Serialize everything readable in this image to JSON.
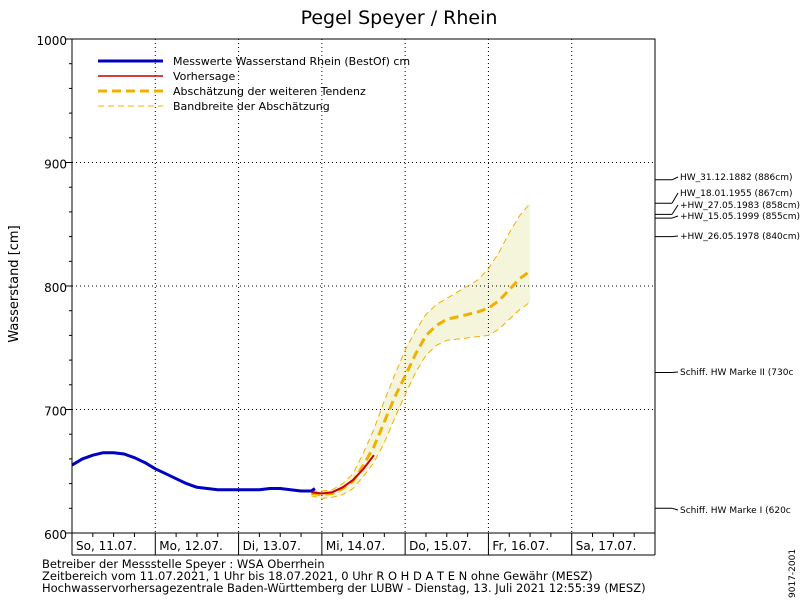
{
  "chart_data": {
    "type": "line",
    "title": "Pegel Speyer / Rhein",
    "ylabel": "Wasserstand [cm]",
    "ylim": [
      600,
      1000
    ],
    "yticks": [
      600,
      700,
      800,
      900,
      1000
    ],
    "xlim": [
      "2021-07-11T00:00",
      "2021-07-18T00:00"
    ],
    "day_labels": [
      "So, 11.07.",
      "Mo, 12.07.",
      "Di, 13.07.",
      "Mi, 14.07.",
      "Do, 15.07.",
      "Fr, 16.07.",
      "Sa, 17.07."
    ],
    "grid": true,
    "legend_position": "top-left",
    "series": [
      {
        "name": "Messwerte Wasserstand Rhein (BestOf)   cm",
        "color": "#0000c0",
        "style": "solid-thick",
        "points": [
          [
            "2021-07-11T00:00",
            655
          ],
          [
            "2021-07-11T03:00",
            660
          ],
          [
            "2021-07-11T06:00",
            663
          ],
          [
            "2021-07-11T09:00",
            665
          ],
          [
            "2021-07-11T12:00",
            665
          ],
          [
            "2021-07-11T15:00",
            664
          ],
          [
            "2021-07-11T18:00",
            661
          ],
          [
            "2021-07-11T21:00",
            657
          ],
          [
            "2021-07-12T00:00",
            652
          ],
          [
            "2021-07-12T03:00",
            648
          ],
          [
            "2021-07-12T06:00",
            644
          ],
          [
            "2021-07-12T09:00",
            640
          ],
          [
            "2021-07-12T12:00",
            637
          ],
          [
            "2021-07-12T15:00",
            636
          ],
          [
            "2021-07-12T18:00",
            635
          ],
          [
            "2021-07-12T21:00",
            635
          ],
          [
            "2021-07-13T00:00",
            635
          ],
          [
            "2021-07-13T03:00",
            635
          ],
          [
            "2021-07-13T06:00",
            635
          ],
          [
            "2021-07-13T09:00",
            636
          ],
          [
            "2021-07-13T12:00",
            636
          ],
          [
            "2021-07-13T15:00",
            635
          ],
          [
            "2021-07-13T18:00",
            634
          ],
          [
            "2021-07-13T21:00",
            634
          ],
          [
            "2021-07-13T22:00",
            636
          ]
        ]
      },
      {
        "name": "Vorhersage",
        "color": "#cc0000",
        "style": "solid",
        "points": [
          [
            "2021-07-13T21:00",
            633
          ],
          [
            "2021-07-14T00:00",
            632
          ],
          [
            "2021-07-14T03:00",
            633
          ],
          [
            "2021-07-14T06:00",
            637
          ],
          [
            "2021-07-14T09:00",
            643
          ],
          [
            "2021-07-14T12:00",
            652
          ],
          [
            "2021-07-14T15:00",
            663
          ]
        ]
      },
      {
        "name": "Abschätzung der weiteren Tendenz",
        "color": "#f0b000",
        "style": "dashed-thick",
        "points": [
          [
            "2021-07-13T21:00",
            632
          ],
          [
            "2021-07-14T00:00",
            631
          ],
          [
            "2021-07-14T03:00",
            632
          ],
          [
            "2021-07-14T06:00",
            636
          ],
          [
            "2021-07-14T09:00",
            642
          ],
          [
            "2021-07-14T12:00",
            655
          ],
          [
            "2021-07-14T15:00",
            670
          ],
          [
            "2021-07-14T18:00",
            690
          ],
          [
            "2021-07-14T21:00",
            710
          ],
          [
            "2021-07-15T00:00",
            727
          ],
          [
            "2021-07-15T03:00",
            745
          ],
          [
            "2021-07-15T06:00",
            760
          ],
          [
            "2021-07-15T09:00",
            768
          ],
          [
            "2021-07-15T12:00",
            773
          ],
          [
            "2021-07-15T15:00",
            775
          ],
          [
            "2021-07-15T18:00",
            777
          ],
          [
            "2021-07-15T21:00",
            779
          ],
          [
            "2021-07-16T00:00",
            782
          ],
          [
            "2021-07-16T03:00",
            788
          ],
          [
            "2021-07-16T06:00",
            797
          ],
          [
            "2021-07-16T09:00",
            806
          ],
          [
            "2021-07-16T12:00",
            812
          ]
        ]
      },
      {
        "name": "Bandbreite der Abschätzung",
        "color": "#f0b000",
        "style": "dashed-thin",
        "upper": [
          [
            "2021-07-13T21:00",
            634
          ],
          [
            "2021-07-14T00:00",
            634
          ],
          [
            "2021-07-14T03:00",
            635
          ],
          [
            "2021-07-14T06:00",
            640
          ],
          [
            "2021-07-14T09:00",
            648
          ],
          [
            "2021-07-14T12:00",
            665
          ],
          [
            "2021-07-14T15:00",
            684
          ],
          [
            "2021-07-14T18:00",
            707
          ],
          [
            "2021-07-14T21:00",
            728
          ],
          [
            "2021-07-15T00:00",
            748
          ],
          [
            "2021-07-15T03:00",
            764
          ],
          [
            "2021-07-15T06:00",
            777
          ],
          [
            "2021-07-15T09:00",
            785
          ],
          [
            "2021-07-15T12:00",
            790
          ],
          [
            "2021-07-15T15:00",
            795
          ],
          [
            "2021-07-15T18:00",
            800
          ],
          [
            "2021-07-15T21:00",
            805
          ],
          [
            "2021-07-16T00:00",
            814
          ],
          [
            "2021-07-16T03:00",
            827
          ],
          [
            "2021-07-16T06:00",
            843
          ],
          [
            "2021-07-16T09:00",
            857
          ],
          [
            "2021-07-16T12:00",
            867
          ]
        ],
        "lower": [
          [
            "2021-07-13T21:00",
            630
          ],
          [
            "2021-07-14T00:00",
            628
          ],
          [
            "2021-07-14T03:00",
            629
          ],
          [
            "2021-07-14T06:00",
            631
          ],
          [
            "2021-07-14T09:00",
            636
          ],
          [
            "2021-07-14T12:00",
            646
          ],
          [
            "2021-07-14T15:00",
            657
          ],
          [
            "2021-07-14T18:00",
            673
          ],
          [
            "2021-07-14T21:00",
            693
          ],
          [
            "2021-07-15T00:00",
            712
          ],
          [
            "2021-07-15T03:00",
            730
          ],
          [
            "2021-07-15T06:00",
            744
          ],
          [
            "2021-07-15T09:00",
            752
          ],
          [
            "2021-07-15T12:00",
            756
          ],
          [
            "2021-07-15T15:00",
            757
          ],
          [
            "2021-07-15T18:00",
            758
          ],
          [
            "2021-07-15T21:00",
            759
          ],
          [
            "2021-07-16T00:00",
            760
          ],
          [
            "2021-07-16T03:00",
            765
          ],
          [
            "2021-07-16T06:00",
            773
          ],
          [
            "2021-07-16T09:00",
            781
          ],
          [
            "2021-07-16T12:00",
            787
          ]
        ]
      }
    ],
    "band_fill_color": "#f5f5dc",
    "reference_marks": [
      {
        "label": "HW_31.12.1882 (886cm)",
        "value": 886
      },
      {
        "label": "HW_18.01.1955 (867cm)",
        "value": 867
      },
      {
        "label": "+HW_27.05.1983 (858cm)",
        "value": 858
      },
      {
        "label": "+HW_15.05.1999 (855cm)",
        "value": 855
      },
      {
        "label": "+HW_26.05.1978 (840cm)",
        "value": 840
      },
      {
        "label": "Schiff. HW Marke II (730c",
        "value": 730
      },
      {
        "label": "Schiff. HW Marke I (620c",
        "value": 620
      }
    ]
  },
  "footer": {
    "line1": "Betreiber der Messstelle Speyer : WSA Oberrhein",
    "line2": "Zeitbereich vom 11.07.2021, 1 Uhr bis 18.07.2021, 0 Uhr   R O H D A T E N ohne Gewähr (MESZ)",
    "line3": "Hochwasservorhersagezentrale Baden-Württemberg der LUBW - Dienstag, 13. Juli 2021 12:55:39 (MESZ)"
  },
  "side_id": "9017-2001"
}
